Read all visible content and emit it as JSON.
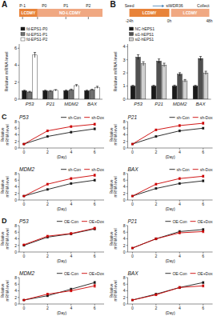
{
  "chart_data": [
    {
      "type": "bar",
      "annotations": [
        "A",
        "LCDMY",
        "NO-LCDMY",
        "P-1",
        "P0",
        "P1",
        "P2"
      ],
      "categories": [
        "P53",
        "P21",
        "MDM2",
        "BAX"
      ],
      "series": [
        {
          "name": "fd-EPS1-P0",
          "color": "#1a1a1a",
          "values": [
            1.0,
            1.0,
            1.0,
            1.0
          ],
          "errors": [
            0.06,
            0.06,
            0.07,
            0.06
          ]
        },
        {
          "name": "fd-EPS1-P1",
          "color": "#707070",
          "values": [
            0.85,
            0.95,
            1.1,
            1.1
          ],
          "errors": [
            0.08,
            0.07,
            0.09,
            0.08
          ]
        },
        {
          "name": "fd-EPS1-P2",
          "color": "#ffffff",
          "values": [
            5.2,
            1.05,
            1.6,
            1.4
          ],
          "errors": [
            0.3,
            0.08,
            0.12,
            0.12
          ]
        }
      ],
      "ylabel": "Relative mRNA level",
      "ylim": [
        0,
        6.5
      ],
      "yticks": [
        0,
        2,
        4,
        6
      ],
      "legend": "upper left"
    },
    {
      "type": "bar",
      "annotations": [
        "B",
        "LCDMY",
        "LCDMY",
        "Seed",
        "siWDR36",
        "Collect",
        "-24h",
        "0h",
        "48h"
      ],
      "categories": [
        "P53",
        "P21",
        "MDM2",
        "BAX"
      ],
      "series": [
        {
          "name": "NC-hEPS1",
          "color": "#1a1a1a",
          "values": [
            1.0,
            1.0,
            1.0,
            1.0
          ],
          "errors": [
            0.06,
            0.06,
            0.07,
            0.06
          ]
        },
        {
          "name": "si1-hEPS1",
          "color": "#505050",
          "values": [
            3.2,
            2.9,
            1.9,
            3.1
          ],
          "errors": [
            0.18,
            0.16,
            0.12,
            0.15
          ]
        },
        {
          "name": "si2-hEPS1",
          "color": "#d0d0d0",
          "values": [
            2.7,
            2.6,
            1.4,
            2.0
          ],
          "errors": [
            0.15,
            0.14,
            0.1,
            0.13
          ]
        }
      ],
      "ylabel": "Relative mRNA level",
      "ylim": [
        0,
        4.2
      ],
      "yticks": [
        0,
        1,
        2,
        3,
        4
      ],
      "legend": "upper left"
    },
    {
      "type": "line",
      "title": "P53",
      "annotations": [
        "C"
      ],
      "x": [
        0,
        2,
        4,
        6
      ],
      "xlim": [
        -0.4,
        6.8
      ],
      "xticks": [
        0,
        2,
        4,
        6
      ],
      "xlabel": "(Day)",
      "ylabel": "Relative mRNA level",
      "ylim": [
        0,
        8
      ],
      "yticks": [
        0,
        2,
        4,
        6,
        8
      ],
      "legend": "upper right",
      "series": [
        {
          "name": "sh-Con",
          "color": "#1a1a1a",
          "marker": "square",
          "values": [
            1.2,
            3.5,
            4.8,
            5.8
          ],
          "errors": [
            0.12,
            0.25,
            0.28,
            0.3
          ]
        },
        {
          "name": "sh-Dox",
          "color": "#CC0000",
          "marker": "square",
          "values": [
            1.2,
            5.2,
            6.5,
            7.2
          ],
          "errors": [
            0.12,
            0.28,
            0.3,
            0.35
          ]
        }
      ]
    },
    {
      "type": "line",
      "title": "P21",
      "x": [
        0,
        2,
        4,
        6
      ],
      "xlim": [
        -0.4,
        6.8
      ],
      "xticks": [
        0,
        2,
        4,
        6
      ],
      "xlabel": "(Day)",
      "ylabel": "Relative mRNA level",
      "ylim": [
        0,
        8
      ],
      "yticks": [
        0,
        2,
        4,
        6,
        8
      ],
      "legend": "upper right",
      "series": [
        {
          "name": "sh-Con",
          "color": "#1a1a1a",
          "marker": "square",
          "values": [
            1.2,
            3.5,
            5.2,
            6.0
          ],
          "errors": [
            0.12,
            0.25,
            0.3,
            0.28
          ]
        },
        {
          "name": "sh-Dox",
          "color": "#CC0000",
          "marker": "square",
          "values": [
            1.2,
            5.5,
            6.8,
            7.5
          ],
          "errors": [
            0.12,
            0.28,
            0.32,
            0.38
          ]
        }
      ]
    },
    {
      "type": "line",
      "title": "MDM2",
      "x": [
        0,
        2,
        4,
        6
      ],
      "xlim": [
        -0.4,
        6.8
      ],
      "xticks": [
        0,
        2,
        4,
        6
      ],
      "xlabel": "(Day)",
      "ylabel": "Relative mRNA level",
      "ylim": [
        0,
        8
      ],
      "yticks": [
        0,
        2,
        4,
        6,
        8
      ],
      "legend": "upper right",
      "series": [
        {
          "name": "sh-Con",
          "color": "#1a1a1a",
          "marker": "square",
          "values": [
            1.2,
            3.2,
            5.0,
            6.0
          ],
          "errors": [
            0.12,
            0.25,
            0.28,
            0.3
          ]
        },
        {
          "name": "sh-Dox",
          "color": "#CC0000",
          "marker": "square",
          "values": [
            1.2,
            4.8,
            6.5,
            7.5
          ],
          "errors": [
            0.12,
            0.28,
            0.32,
            0.38
          ]
        }
      ]
    },
    {
      "type": "line",
      "title": "BAX",
      "x": [
        0,
        2,
        4,
        6
      ],
      "xlim": [
        -0.4,
        6.8
      ],
      "xticks": [
        0,
        2,
        4,
        6
      ],
      "xlabel": "(Day)",
      "ylabel": "Relative mRNA level",
      "ylim": [
        0,
        8
      ],
      "yticks": [
        0,
        2,
        4,
        6,
        8
      ],
      "legend": "upper right",
      "series": [
        {
          "name": "sh-Con",
          "color": "#1a1a1a",
          "marker": "square",
          "values": [
            1.2,
            3.5,
            5.0,
            5.8
          ],
          "errors": [
            0.12,
            0.25,
            0.28,
            0.3
          ]
        },
        {
          "name": "sh-Dox",
          "color": "#CC0000",
          "marker": "square",
          "values": [
            1.2,
            4.8,
            6.5,
            7.2
          ],
          "errors": [
            0.12,
            0.28,
            0.32,
            0.35
          ]
        }
      ]
    },
    {
      "type": "line",
      "title": "P53",
      "annotations": [
        "D"
      ],
      "x": [
        0,
        2,
        4,
        6
      ],
      "xlim": [
        -0.4,
        6.8
      ],
      "xticks": [
        0,
        2,
        4,
        6
      ],
      "xlabel": "(Day)",
      "ylabel": "Relative mRNA level",
      "ylim": [
        0,
        8
      ],
      "yticks": [
        0,
        2,
        4,
        6,
        8
      ],
      "legend": "upper right",
      "series": [
        {
          "name": "OE-Con",
          "color": "#1a1a1a",
          "marker": "square",
          "values": [
            2.0,
            4.5,
            5.5,
            7.0
          ],
          "errors": [
            0.12,
            0.28,
            0.3,
            0.32
          ]
        },
        {
          "name": "OE+Dox",
          "color": "#CC0000",
          "marker": "square",
          "values": [
            2.2,
            4.8,
            5.6,
            7.2
          ],
          "errors": [
            0.12,
            0.28,
            0.3,
            0.35
          ]
        }
      ]
    },
    {
      "type": "line",
      "title": "P21",
      "x": [
        0,
        2,
        4,
        6
      ],
      "xlim": [
        -0.4,
        6.8
      ],
      "xticks": [
        0,
        2,
        4,
        6
      ],
      "xlabel": "(Day)",
      "ylabel": "Relative mRNA level",
      "ylim": [
        0,
        8
      ],
      "yticks": [
        0,
        2,
        4,
        6,
        8
      ],
      "legend": "upper right",
      "series": [
        {
          "name": "OE-Con",
          "color": "#1a1a1a",
          "marker": "square",
          "values": [
            1.2,
            4.0,
            6.2,
            6.8
          ],
          "errors": [
            0.12,
            0.28,
            0.32,
            0.3
          ]
        },
        {
          "name": "OE+Dox",
          "color": "#CC0000",
          "marker": "square",
          "values": [
            1.2,
            4.0,
            5.8,
            6.2
          ],
          "errors": [
            0.12,
            0.28,
            0.32,
            0.35
          ]
        }
      ]
    },
    {
      "type": "line",
      "title": "MDM2",
      "x": [
        0,
        2,
        4,
        6
      ],
      "xlim": [
        -0.4,
        6.8
      ],
      "xticks": [
        0,
        2,
        4,
        6
      ],
      "xlabel": "(Day)",
      "ylabel": "Relative mRNA level",
      "ylim": [
        0,
        8
      ],
      "yticks": [
        0,
        2,
        4,
        6,
        8
      ],
      "legend": "upper right",
      "series": [
        {
          "name": "OE-Con",
          "color": "#1a1a1a",
          "marker": "square",
          "values": [
            1.2,
            2.5,
            4.5,
            6.5
          ],
          "errors": [
            0.12,
            0.28,
            0.3,
            0.38
          ]
        },
        {
          "name": "OE+Dox",
          "color": "#CC0000",
          "marker": "square",
          "values": [
            1.2,
            3.0,
            4.0,
            5.5
          ],
          "errors": [
            0.12,
            0.28,
            0.3,
            0.45
          ]
        }
      ]
    },
    {
      "type": "line",
      "title": "BAX",
      "x": [
        0,
        2,
        4,
        6
      ],
      "xlim": [
        -0.4,
        6.8
      ],
      "xticks": [
        0,
        2,
        4,
        6
      ],
      "xlabel": "(Day)",
      "ylabel": "Relative mRNA level",
      "ylim": [
        0,
        8
      ],
      "yticks": [
        0,
        2,
        4,
        6,
        8
      ],
      "legend": "upper right",
      "series": [
        {
          "name": "OE-Con",
          "color": "#1a1a1a",
          "marker": "square",
          "values": [
            1.2,
            3.0,
            5.0,
            6.5
          ],
          "errors": [
            0.12,
            0.28,
            0.3,
            0.3
          ]
        },
        {
          "name": "OE+Dox",
          "color": "#CC0000",
          "marker": "square",
          "values": [
            1.2,
            2.8,
            5.0,
            5.5
          ],
          "errors": [
            0.12,
            0.28,
            0.3,
            0.35
          ]
        }
      ]
    }
  ]
}
